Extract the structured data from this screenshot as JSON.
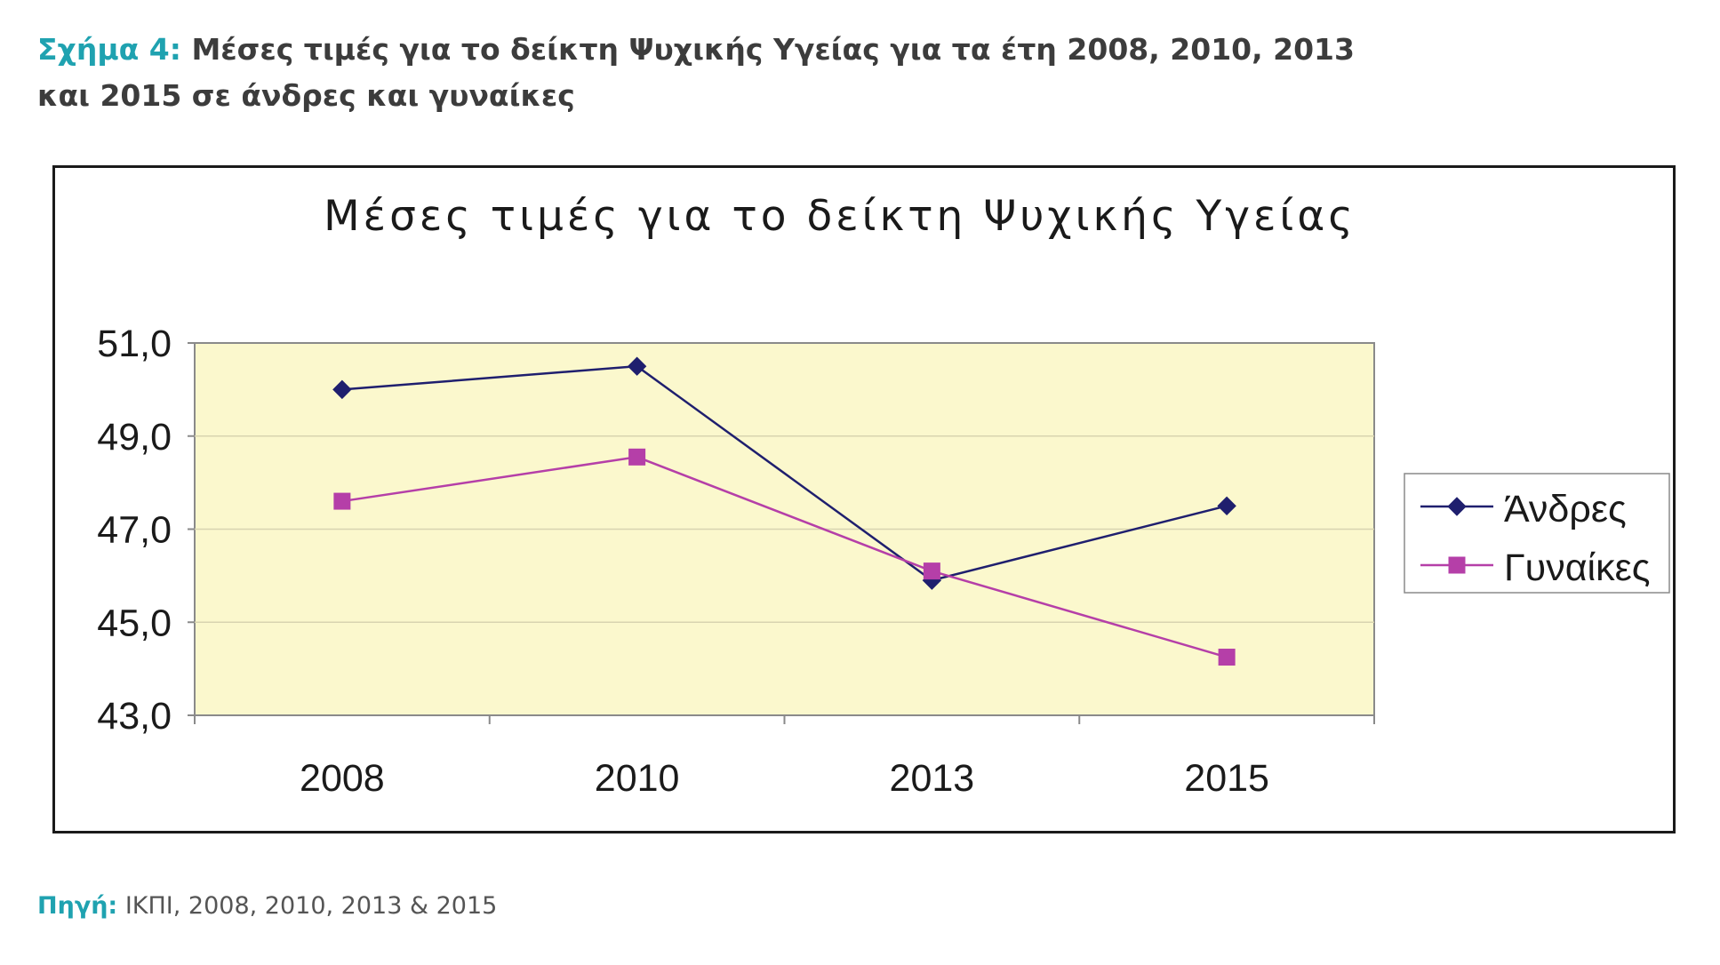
{
  "caption": {
    "label": "Σχήμα 4:",
    "line1": "Μέσες τιμές για το δείκτη Ψυχικής Υγείας για τα έτη 2008, 2010, 2013",
    "line2": "και 2015 σε άνδρες και γυναίκες"
  },
  "source": {
    "label": "Πηγή:",
    "text": "ΙΚΠΙ, 2008, 2010, 2013 & 2015"
  },
  "chart_data": {
    "type": "line",
    "title": "Μέσες τιμές για το δείκτη Ψυχικής Υγείας",
    "categories": [
      "2008",
      "2010",
      "2013",
      "2015"
    ],
    "ylim": [
      43.0,
      51.0
    ],
    "yticks": [
      51.0,
      49.0,
      47.0,
      45.0,
      43.0
    ],
    "ytick_labels": [
      "51,0",
      "49,0",
      "47,0",
      "45,0",
      "43,0"
    ],
    "grid": true,
    "legend": "right",
    "plot_background": "#fbf8cd",
    "series": [
      {
        "name": "Άνδρες",
        "values": [
          50.0,
          50.5,
          45.9,
          47.5
        ],
        "color": "#1f1f6e",
        "marker": "diamond"
      },
      {
        "name": "Γυναίκες",
        "values": [
          47.6,
          48.55,
          46.1,
          44.25
        ],
        "color": "#b53fa8",
        "marker": "square"
      }
    ]
  }
}
